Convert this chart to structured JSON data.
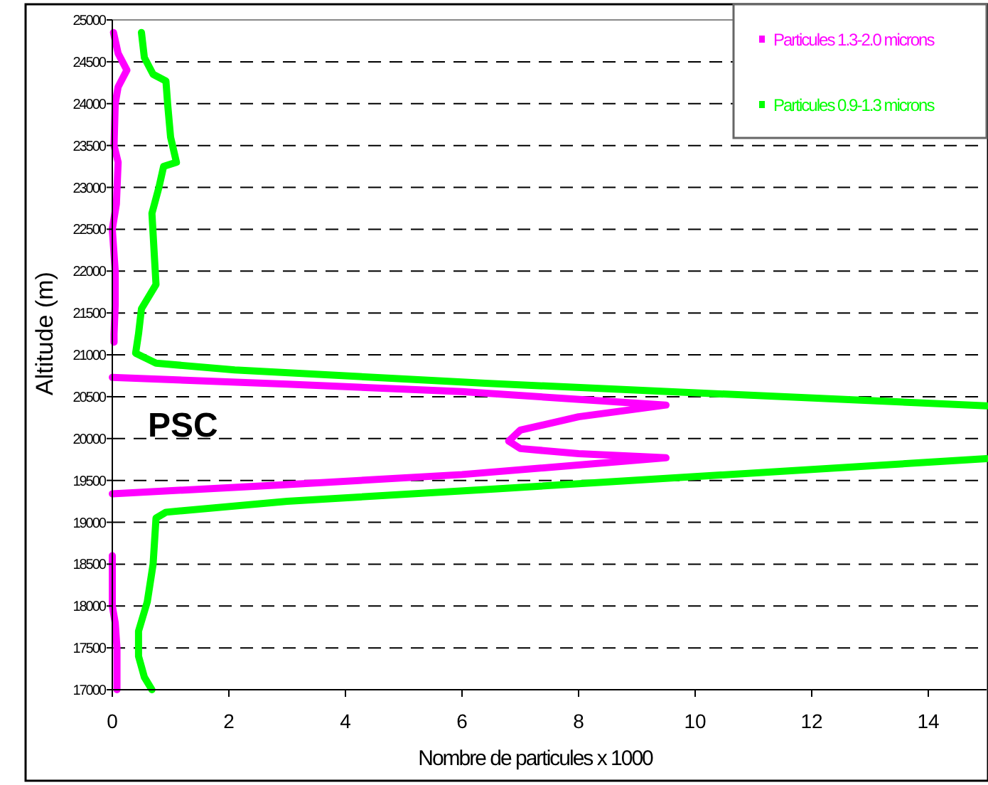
{
  "chart_data": {
    "type": "line",
    "xlabel": "Nombre de particules x 1000",
    "ylabel": "Altitude (m)",
    "annotations": [
      "PSC"
    ],
    "xlim": [
      0,
      15
    ],
    "xticks": [
      0,
      2,
      4,
      6,
      8,
      10,
      12,
      14
    ],
    "ylim": [
      17000,
      25000
    ],
    "yticks": [
      17000,
      17500,
      18000,
      18500,
      19000,
      19500,
      20000,
      20500,
      21000,
      21500,
      22000,
      22500,
      23000,
      23500,
      24000,
      24500,
      25000
    ],
    "grid": "y",
    "legend": "top right",
    "line_style": "solid",
    "series": [
      {
        "name": "Particules 1.3-2.0 microns",
        "color": "#ff00ff",
        "x": [
          0.02,
          0.1,
          0.25,
          0.1,
          0.05,
          0.03,
          0.1,
          0.07,
          0,
          0.05,
          0.05,
          0.03,
          0.03,
          null,
          0,
          3,
          6,
          9.5,
          8,
          7,
          6.8,
          7,
          8,
          9.5,
          6,
          3,
          0,
          null,
          0,
          0,
          0.05,
          0.08,
          0.08
        ],
        "values": [
          24850,
          24600,
          24400,
          24200,
          24000,
          23500,
          23300,
          22800,
          22500,
          22000,
          21600,
          21250,
          21150,
          null,
          20730,
          20650,
          20560,
          20400,
          20260,
          20100,
          19970,
          19880,
          19820,
          19770,
          19570,
          19450,
          19340,
          null,
          18600,
          18000,
          17800,
          17500,
          17000
        ]
      },
      {
        "name": "Particules 0.9-1.3 microns",
        "color": "#00ff00",
        "x": [
          0.5,
          0.55,
          0.7,
          0.92,
          0.95,
          1.0,
          1.1,
          0.88,
          0.8,
          0.68,
          0.72,
          0.75,
          0.5,
          0.45,
          0.4,
          0.75,
          2.1,
          6.4,
          15,
          null,
          15,
          6.6,
          3,
          0.92,
          0.75,
          0.7,
          0.6,
          0.45,
          0.45,
          0.55,
          0.68
        ],
        "values": [
          24850,
          24550,
          24350,
          24270,
          23990,
          23600,
          23300,
          23250,
          23000,
          22690,
          22200,
          21840,
          21550,
          21250,
          21020,
          20900,
          20820,
          20660,
          20390,
          null,
          19760,
          19400,
          19250,
          19120,
          19050,
          18500,
          18050,
          17700,
          17400,
          17150,
          17000
        ]
      }
    ]
  }
}
